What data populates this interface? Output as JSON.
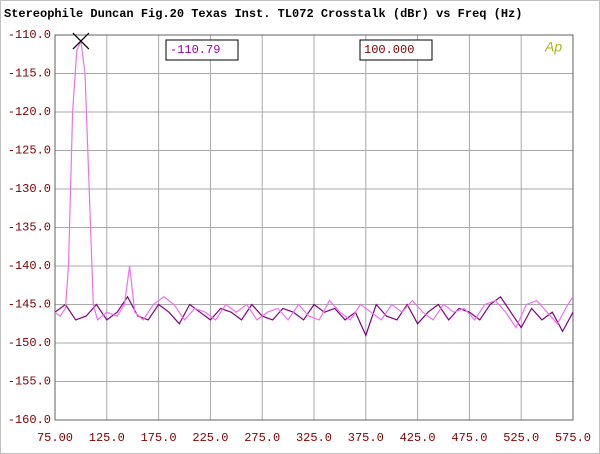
{
  "chart_data": {
    "type": "line",
    "title": "Stereophile  Duncan Fig.20  Texas Inst. TL072  Crosstalk (dBr) vs Freq (Hz)",
    "annotations": [
      "-110.79",
      "100.000",
      "Ap"
    ],
    "xlim": [
      75,
      575
    ],
    "ylim": [
      -160,
      -110
    ],
    "xticks": [
      {
        "value": 75,
        "label": "75.00"
      },
      {
        "value": 125,
        "label": "125.0"
      },
      {
        "value": 175,
        "label": "175.0"
      },
      {
        "value": 225,
        "label": "225.0"
      },
      {
        "value": 275,
        "label": "275.0"
      },
      {
        "value": 325,
        "label": "325.0"
      },
      {
        "value": 375,
        "label": "375.0"
      },
      {
        "value": 425,
        "label": "425.0"
      },
      {
        "value": 475,
        "label": "475.0"
      },
      {
        "value": 525,
        "label": "525.0"
      },
      {
        "value": 575,
        "label": "575.0"
      }
    ],
    "yticks": [
      {
        "value": -110,
        "label": "-110.0"
      },
      {
        "value": -115,
        "label": "-115.0"
      },
      {
        "value": -120,
        "label": "-120.0"
      },
      {
        "value": -125,
        "label": "-125.0"
      },
      {
        "value": -130,
        "label": "-130.0"
      },
      {
        "value": -135,
        "label": "-135.0"
      },
      {
        "value": -140,
        "label": "-140.0"
      },
      {
        "value": -145,
        "label": "-145.0"
      },
      {
        "value": -150,
        "label": "-150.0"
      },
      {
        "value": -155,
        "label": "-155.0"
      },
      {
        "value": -160,
        "label": "-160.0"
      }
    ],
    "grid": true,
    "series": [
      {
        "color": "#f070f0",
        "x": [
          75,
          80,
          85,
          88,
          92,
          96,
          100,
          104,
          108,
          112,
          116,
          125,
          135,
          142,
          147,
          152,
          160,
          170,
          180,
          190,
          200,
          210,
          220,
          230,
          240,
          250,
          260,
          270,
          280,
          290,
          300,
          310,
          320,
          330,
          340,
          350,
          360,
          370,
          380,
          390,
          400,
          410,
          420,
          430,
          440,
          450,
          460,
          470,
          480,
          490,
          500,
          510,
          520,
          530,
          540,
          550,
          560,
          570,
          575
        ],
        "values": [
          -146,
          -146.5,
          -145.5,
          -140,
          -120,
          -112,
          -110.79,
          -115,
          -130,
          -145,
          -147,
          -146,
          -146.5,
          -145,
          -140,
          -146,
          -147,
          -145,
          -144,
          -145,
          -147,
          -145.5,
          -146,
          -147,
          -145,
          -146,
          -145,
          -147,
          -146,
          -145.5,
          -147,
          -145,
          -146.5,
          -147,
          -144.5,
          -146,
          -147,
          -145,
          -146,
          -147,
          -145,
          -146,
          -144.5,
          -146,
          -147,
          -145,
          -146,
          -145.5,
          -147,
          -145,
          -144.5,
          -146,
          -148,
          -145,
          -144.5,
          -146,
          -147.5,
          -145,
          -144
        ]
      },
      {
        "color": "#800080",
        "x": [
          75,
          85,
          95,
          105,
          115,
          125,
          135,
          145,
          155,
          165,
          175,
          185,
          195,
          205,
          215,
          225,
          235,
          245,
          255,
          265,
          275,
          285,
          295,
          305,
          315,
          325,
          335,
          345,
          355,
          365,
          375,
          385,
          395,
          405,
          415,
          425,
          435,
          445,
          455,
          465,
          475,
          485,
          495,
          505,
          515,
          525,
          535,
          545,
          555,
          565,
          575
        ],
        "values": [
          -146,
          -145,
          -147,
          -146.5,
          -145,
          -147,
          -146,
          -144,
          -146.5,
          -147,
          -145,
          -146,
          -147.5,
          -145,
          -146,
          -147,
          -145.5,
          -146,
          -147,
          -145,
          -146.5,
          -147,
          -145.5,
          -146,
          -147,
          -145,
          -146,
          -145.5,
          -147,
          -146,
          -149,
          -145,
          -146.5,
          -147,
          -145,
          -147.5,
          -146,
          -145,
          -147,
          -145.5,
          -146,
          -147,
          -145,
          -144,
          -146,
          -148,
          -145.5,
          -147,
          -146,
          -148.5,
          -146
        ]
      }
    ]
  }
}
